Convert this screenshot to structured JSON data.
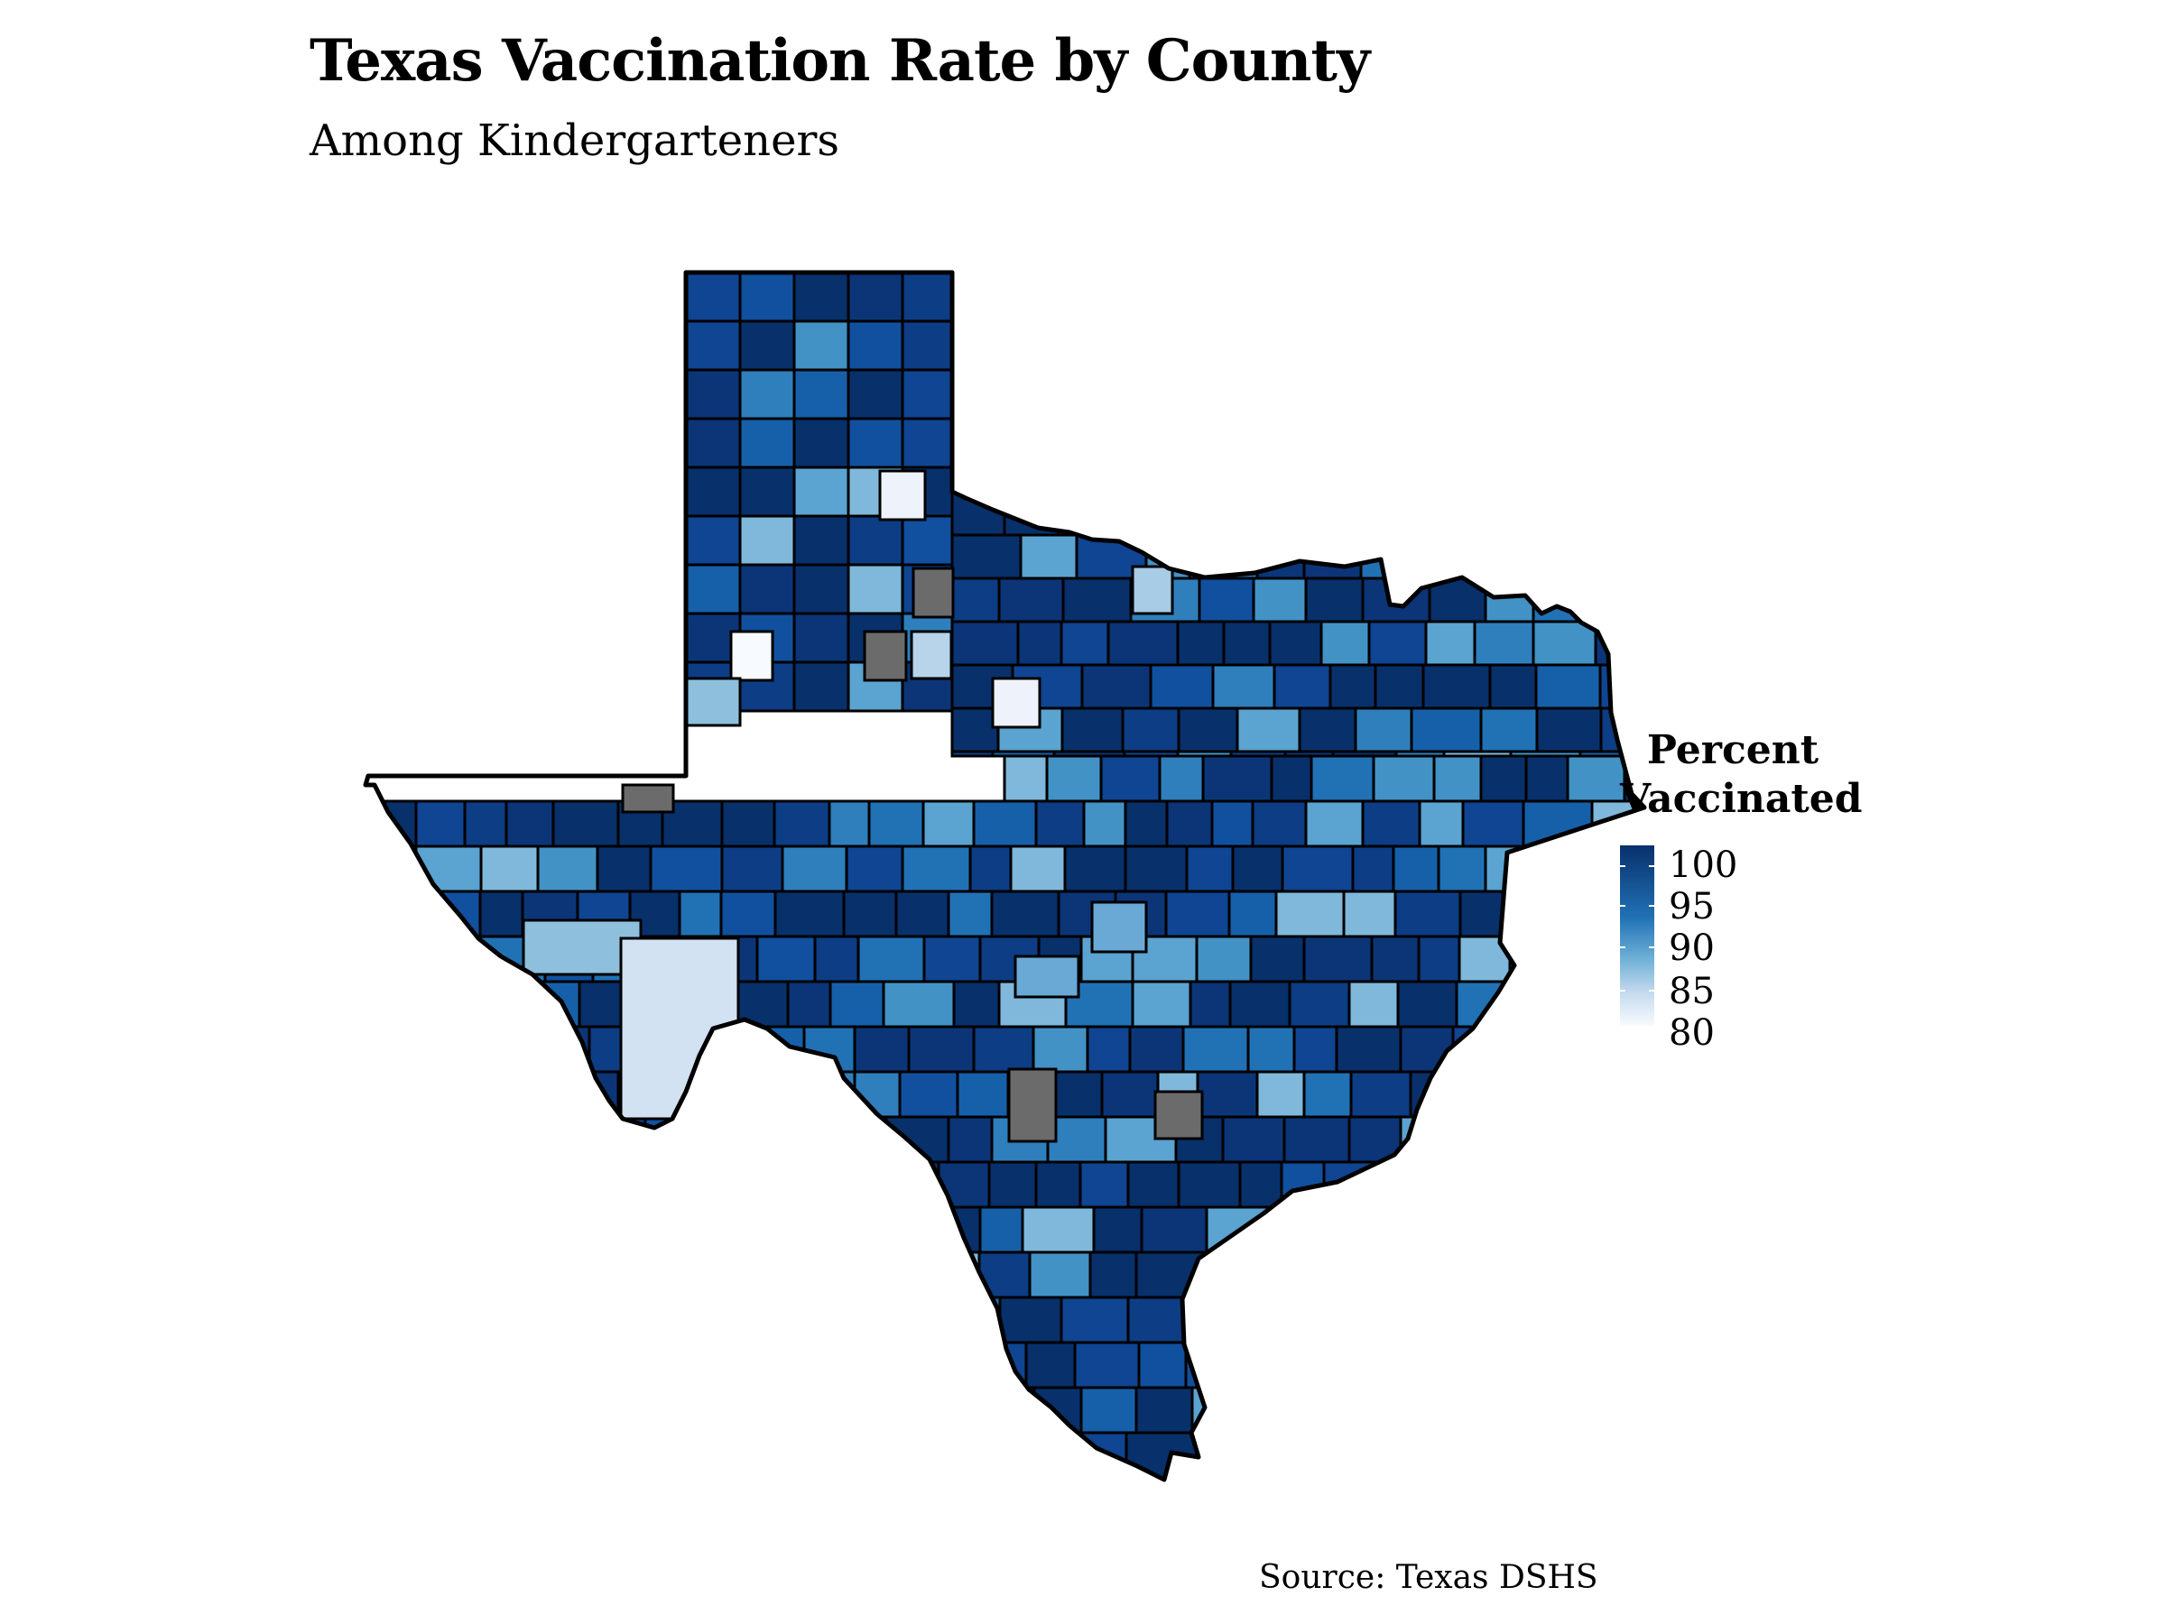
{
  "title": "Texas Vaccination Rate by County",
  "subtitle": "Among Kindergarteners",
  "source": "Source: Texas DSHS",
  "legend": {
    "title_line1": "Percent",
    "title_line2": "Vaccinated",
    "labels": [
      "100",
      "95",
      "90",
      "85",
      "80"
    ],
    "range": [
      80,
      100
    ],
    "color_low": "#f7fbff",
    "color_high": "#08306b",
    "missing_color": "#6b6b6b"
  },
  "map": {
    "region": "Texas counties",
    "outline_color": "#000000"
  }
}
